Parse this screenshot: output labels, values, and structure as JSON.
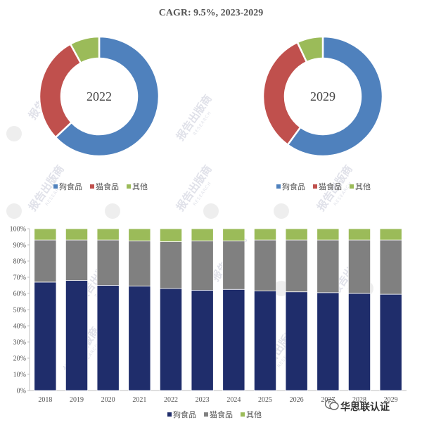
{
  "title": "CAGR:  9.5%, 2023-2029",
  "colors": {
    "dog": "#4f81bd",
    "cat": "#c0504d",
    "other": "#9bbb59",
    "bar_dog": "#1f2d6b",
    "bar_cat": "#808080",
    "bar_other": "#9bbb59"
  },
  "watermark": {
    "text": "报告出版商",
    "sub": "RESEARCH"
  },
  "brand": {
    "name": "华思联认证"
  },
  "chart_data": [
    {
      "type": "pie",
      "center_label": "2022",
      "categories": [
        "狗食品",
        "猫食品",
        "其他"
      ],
      "values": [
        63,
        29,
        8
      ],
      "legend_position": "bottom"
    },
    {
      "type": "pie",
      "center_label": "2029",
      "categories": [
        "狗食品",
        "猫食品",
        "其他"
      ],
      "values": [
        60,
        33,
        7
      ],
      "legend_position": "bottom"
    },
    {
      "type": "bar",
      "stacked": true,
      "categories": [
        "2018",
        "2019",
        "2020",
        "2021",
        "2022",
        "2023",
        "2024",
        "2025",
        "2026",
        "2027",
        "2028",
        "2029"
      ],
      "series": [
        {
          "name": "狗食品",
          "values": [
            67,
            68,
            65,
            64.5,
            63,
            62,
            62.5,
            61.5,
            61,
            60.5,
            60,
            59.5
          ]
        },
        {
          "name": "猫食品",
          "values": [
            26,
            25,
            28,
            28,
            29,
            30.5,
            30,
            31.5,
            32,
            32.5,
            33,
            33.5
          ]
        },
        {
          "name": "其他",
          "values": [
            7,
            7,
            7,
            7.5,
            8,
            7.5,
            7.5,
            7,
            7,
            7,
            7,
            7
          ]
        }
      ],
      "yticks": [
        "0%",
        "10%",
        "20%",
        "30%",
        "40%",
        "50%",
        "60%",
        "70%",
        "80%",
        "90%",
        "100%"
      ],
      "ylim": [
        0,
        100
      ],
      "legend_position": "bottom"
    }
  ]
}
